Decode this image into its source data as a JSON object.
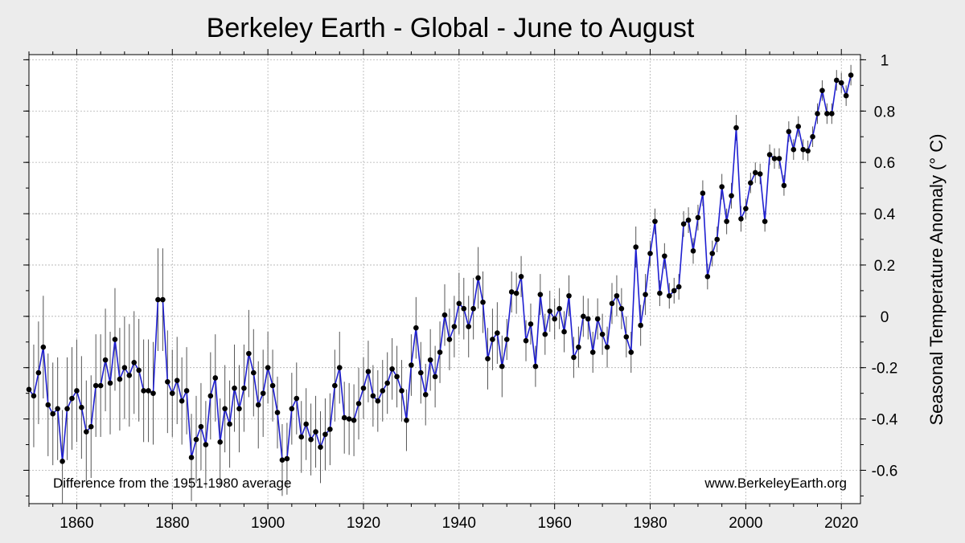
{
  "chart_data": {
    "type": "line",
    "title": "Berkeley Earth - Global - June to August",
    "xlabel": "",
    "ylabel": "Seasonal Temperature Anomaly (° C)",
    "xlim": [
      1850,
      2024
    ],
    "ylim": [
      -0.73,
      1.02
    ],
    "xticks": [
      1860,
      1880,
      1900,
      1920,
      1940,
      1960,
      1980,
      2000,
      2020
    ],
    "yticks": [
      -0.6,
      -0.4,
      -0.2,
      0,
      0.2,
      0.4,
      0.6,
      0.8,
      1
    ],
    "ytick_labels": [
      "-0.6",
      "-0.4",
      "-0.2",
      "0",
      "0.2",
      "0.4",
      "0.6",
      "0.8",
      "1"
    ],
    "grid": true,
    "annotations": {
      "baseline_note": "Difference from the 1951-1980 average",
      "source": "www.BerkeleyEarth.org"
    },
    "colors": {
      "line": "#1f1fd1",
      "points": "#000000",
      "error_bars": "#555555",
      "grid": "#b0b0b0",
      "plot_bg": "#ffffff",
      "page_bg": "#ececec"
    },
    "x_start": 1850,
    "series": [
      {
        "name": "June to August anomaly",
        "values": [
          -0.285,
          -0.31,
          -0.22,
          -0.12,
          -0.345,
          -0.38,
          -0.36,
          -0.565,
          -0.36,
          -0.32,
          -0.29,
          -0.355,
          -0.45,
          -0.43,
          -0.27,
          -0.27,
          -0.17,
          -0.26,
          -0.09,
          -0.245,
          -0.2,
          -0.23,
          -0.18,
          -0.21,
          -0.29,
          -0.29,
          -0.3,
          0.065,
          0.065,
          -0.255,
          -0.3,
          -0.25,
          -0.33,
          -0.29,
          -0.55,
          -0.48,
          -0.43,
          -0.5,
          -0.31,
          -0.24,
          -0.49,
          -0.36,
          -0.42,
          -0.28,
          -0.36,
          -0.28,
          -0.145,
          -0.22,
          -0.345,
          -0.3,
          -0.2,
          -0.27,
          -0.375,
          -0.56,
          -0.555,
          -0.36,
          -0.32,
          -0.47,
          -0.42,
          -0.48,
          -0.45,
          -0.51,
          -0.46,
          -0.44,
          -0.27,
          -0.2,
          -0.395,
          -0.4,
          -0.405,
          -0.34,
          -0.28,
          -0.215,
          -0.31,
          -0.33,
          -0.29,
          -0.26,
          -0.205,
          -0.235,
          -0.29,
          -0.405,
          -0.19,
          -0.045,
          -0.22,
          -0.305,
          -0.17,
          -0.235,
          -0.14,
          0.005,
          -0.09,
          -0.04,
          0.05,
          0.03,
          -0.04,
          0.03,
          0.15,
          0.055,
          -0.165,
          -0.09,
          -0.065,
          -0.195,
          -0.09,
          0.095,
          0.09,
          0.155,
          -0.095,
          -0.03,
          -0.195,
          0.085,
          -0.07,
          0.02,
          -0.01,
          0.03,
          -0.06,
          0.08,
          -0.16,
          -0.12,
          0.0,
          -0.01,
          -0.14,
          -0.01,
          -0.07,
          -0.12,
          0.05,
          0.08,
          0.03,
          -0.08,
          -0.14,
          0.27,
          -0.035,
          0.085,
          0.245,
          0.37,
          0.09,
          0.235,
          0.08,
          0.1,
          0.115,
          0.36,
          0.375,
          0.255,
          0.385,
          0.48,
          0.155,
          0.245,
          0.3,
          0.505,
          0.37,
          0.47,
          0.735,
          0.38,
          0.42,
          0.52,
          0.56,
          0.555,
          0.37,
          0.63,
          0.615,
          0.615,
          0.51,
          0.72,
          0.65,
          0.74,
          0.65,
          0.645,
          0.7,
          0.79,
          0.88,
          0.79,
          0.79,
          0.92,
          0.91,
          0.86,
          0.94
        ]
      }
    ]
  }
}
